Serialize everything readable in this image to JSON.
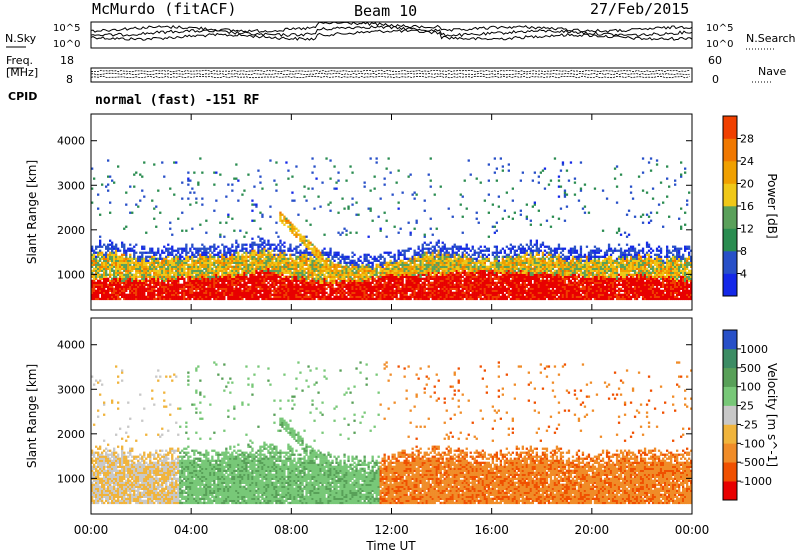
{
  "header": {
    "station": "McMurdo (fitACF)",
    "beam": "Beam 10",
    "date": "27/Feb/2015"
  },
  "strip1": {
    "left_label": "N.Sky",
    "right_label": "N.Search",
    "left_ticks": [
      "10^5",
      "10^0"
    ],
    "right_ticks": [
      "10^5",
      "10^0"
    ]
  },
  "strip2": {
    "left_label_1": "Freq.",
    "left_label_2": "[MHz]",
    "right_label": "Nave",
    "left_ticks": [
      "18",
      "8"
    ],
    "right_ticks": [
      "60",
      "0"
    ]
  },
  "cpid": {
    "label": "CPID",
    "value": "normal (fast) -151 RF"
  },
  "colors": {
    "power_scale": [
      "#1428e8",
      "#2850c8",
      "#2a8c50",
      "#5aa05a",
      "#f0c818",
      "#f0a000",
      "#f07800",
      "#f04000",
      "#e80000"
    ],
    "velocity_scale": [
      "#e80000",
      "#f05000",
      "#f08c28",
      "#f0b43c",
      "#c8c8c8",
      "#78c878",
      "#58a058",
      "#3c8c64",
      "#2850c8"
    ]
  },
  "chart_data": [
    {
      "type": "heatmap",
      "title": "",
      "xlabel": "Time UT",
      "ylabel": "Slant Range [km]",
      "x_ticks": [
        "00:00",
        "04:00",
        "08:00",
        "12:00",
        "16:00",
        "20:00",
        "00:00"
      ],
      "xlim_hours": [
        0,
        24
      ],
      "y_ticks": [
        1000,
        2000,
        3000,
        4000
      ],
      "ylim": [
        200,
        4600
      ],
      "colorbar": {
        "label": "Power [dB]",
        "ticks": [
          4,
          8,
          12,
          16,
          20,
          24,
          28
        ],
        "range": [
          0,
          32
        ]
      },
      "main_band_top_km": [
        [
          0,
          1400
        ],
        [
          1,
          1450
        ],
        [
          2,
          1300
        ],
        [
          3,
          1350
        ],
        [
          4,
          1400
        ],
        [
          5,
          1350
        ],
        [
          6,
          1450
        ],
        [
          7,
          1500
        ],
        [
          8,
          1400
        ],
        [
          9,
          1350
        ],
        [
          10,
          1200
        ],
        [
          11,
          1150
        ],
        [
          12,
          1250
        ],
        [
          13,
          1400
        ],
        [
          14,
          1450
        ],
        [
          15,
          1350
        ],
        [
          16,
          1300
        ],
        [
          17,
          1400
        ],
        [
          18,
          1450
        ],
        [
          19,
          1350
        ],
        [
          20,
          1300
        ],
        [
          21,
          1350
        ],
        [
          22,
          1400
        ],
        [
          23,
          1300
        ],
        [
          24,
          1350
        ]
      ],
      "strongest_echo_top_km": [
        [
          0,
          900
        ],
        [
          2,
          850
        ],
        [
          4,
          900
        ],
        [
          6,
          950
        ],
        [
          7,
          1100
        ],
        [
          8,
          900
        ],
        [
          10,
          800
        ],
        [
          12,
          950
        ],
        [
          14,
          1000
        ],
        [
          16,
          1050
        ],
        [
          18,
          1000
        ],
        [
          20,
          900
        ],
        [
          22,
          950
        ],
        [
          24,
          850
        ]
      ]
    },
    {
      "type": "heatmap",
      "title": "",
      "xlabel": "Time UT",
      "ylabel": "Slant Range [km]",
      "x_ticks": [
        "00:00",
        "04:00",
        "08:00",
        "12:00",
        "16:00",
        "20:00",
        "00:00"
      ],
      "xlim_hours": [
        0,
        24
      ],
      "y_ticks": [
        1000,
        2000,
        3000,
        4000
      ],
      "ylim": [
        200,
        4600
      ],
      "colorbar": {
        "label": "Velocity [m s^-1]",
        "ticks": [
          -1000,
          -500,
          -100,
          -25,
          25,
          100,
          500,
          1000
        ]
      },
      "dominant_velocity_by_hours": [
        {
          "from": 0,
          "to": 3.5,
          "class": "slightly negative (yellow)"
        },
        {
          "from": 3.5,
          "to": 11.5,
          "class": "positive (green)"
        },
        {
          "from": 11.5,
          "to": 24,
          "class": "negative (orange)"
        }
      ]
    }
  ]
}
